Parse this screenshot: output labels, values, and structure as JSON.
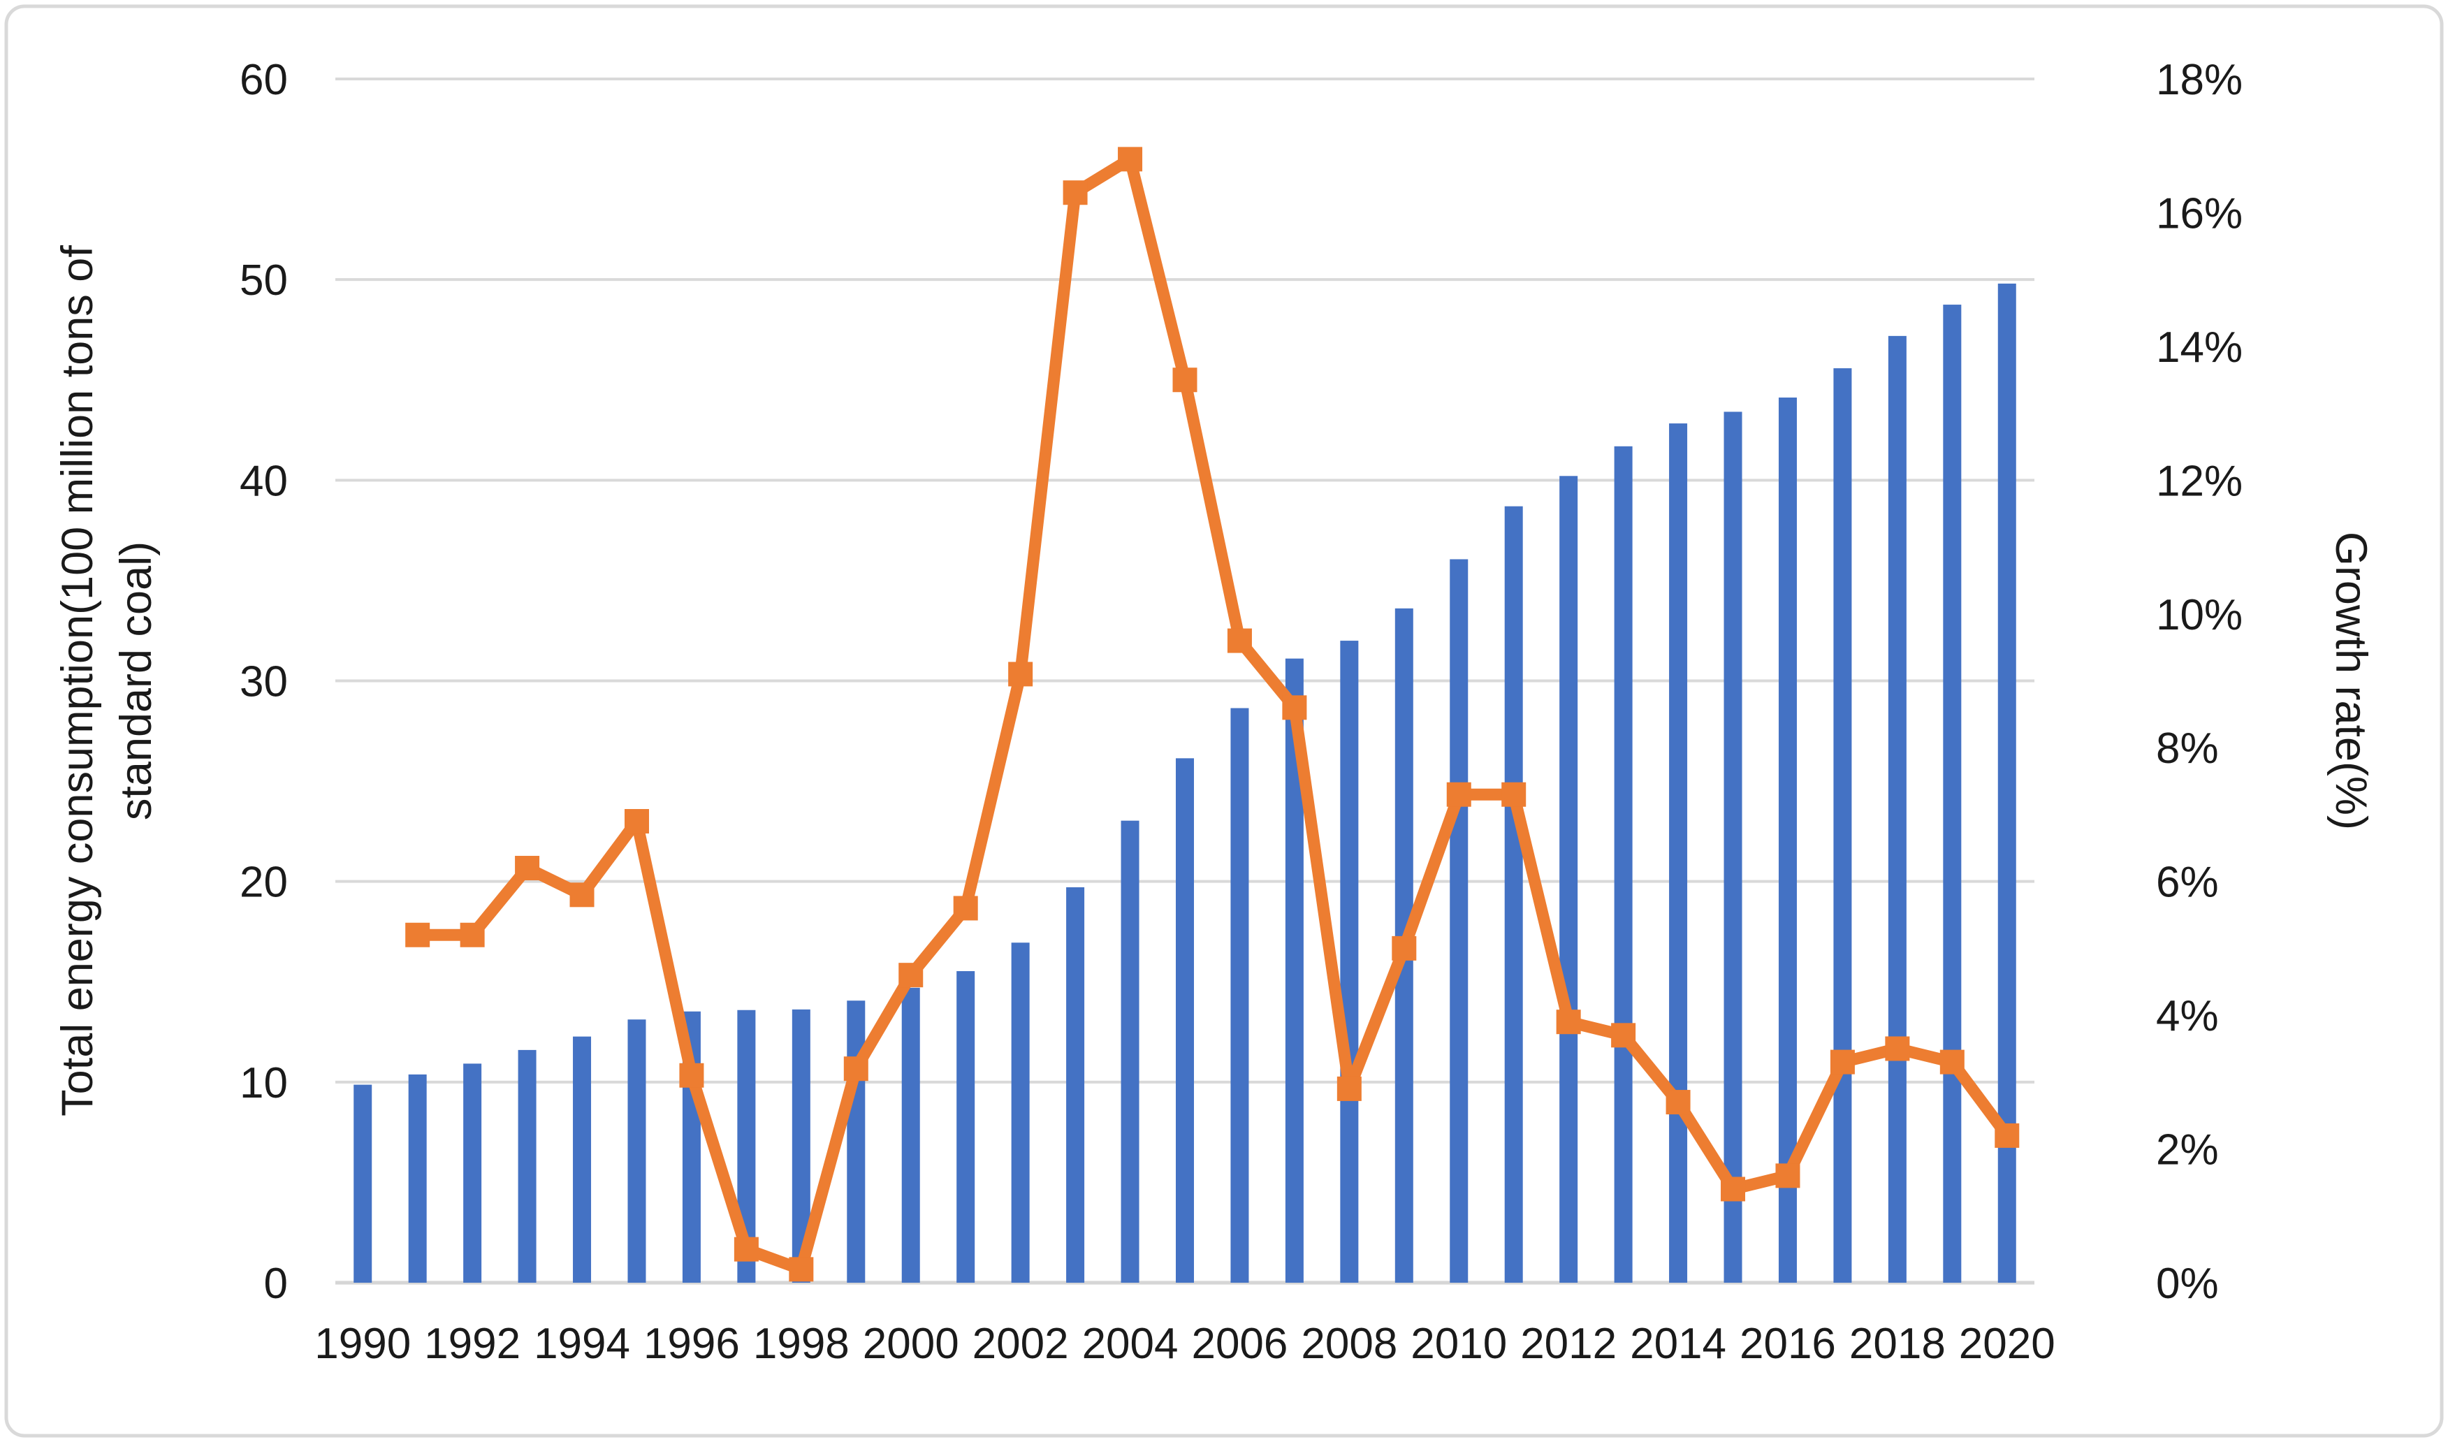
{
  "chart_data": {
    "type": "combo-bar-line",
    "title": "",
    "categories": [
      1990,
      1991,
      1992,
      1993,
      1994,
      1995,
      1996,
      1997,
      1998,
      1999,
      2000,
      2001,
      2002,
      2003,
      2004,
      2005,
      2006,
      2007,
      2008,
      2009,
      2010,
      2011,
      2012,
      2013,
      2014,
      2015,
      2016,
      2017,
      2018,
      2019,
      2020
    ],
    "series": [
      {
        "name": "Total energy consumption",
        "type": "bar",
        "axis": "left",
        "color": "#4472C4",
        "values": [
          9.87,
          10.38,
          10.92,
          11.6,
          12.27,
          13.12,
          13.52,
          13.59,
          13.62,
          14.06,
          14.7,
          15.53,
          16.95,
          19.71,
          23.03,
          26.14,
          28.64,
          31.11,
          32.0,
          33.61,
          36.06,
          38.7,
          40.21,
          41.69,
          42.83,
          43.41,
          44.12,
          45.58,
          47.19,
          48.75,
          49.8
        ]
      },
      {
        "name": "Growth rate",
        "type": "line",
        "axis": "right",
        "color": "#ED7D31",
        "marker": "square",
        "values": [
          null,
          5.2,
          5.2,
          6.2,
          5.8,
          6.9,
          3.1,
          0.5,
          0.2,
          3.2,
          4.6,
          5.6,
          9.1,
          16.3,
          16.8,
          13.5,
          9.6,
          8.6,
          2.9,
          5.0,
          7.3,
          7.3,
          3.9,
          3.7,
          2.7,
          1.4,
          1.6,
          3.3,
          3.5,
          3.3,
          2.2
        ]
      }
    ],
    "left_axis": {
      "title_lines": [
        "Total energy consumption(100 million tons of",
        "standard coal)"
      ],
      "min": 0,
      "max": 60,
      "step": 10,
      "tick_labels": [
        "0",
        "10",
        "20",
        "30",
        "40",
        "50",
        "60"
      ]
    },
    "right_axis": {
      "title": "Growth rate(%)",
      "min": 0,
      "max": 18,
      "step": 2,
      "tick_labels": [
        "0%",
        "2%",
        "4%",
        "6%",
        "8%",
        "10%",
        "12%",
        "14%",
        "16%",
        "18%"
      ]
    },
    "x_axis": {
      "tick_labels": [
        "1990",
        "1992",
        "1994",
        "1996",
        "1998",
        "2000",
        "2002",
        "2004",
        "2006",
        "2008",
        "2010",
        "2012",
        "2014",
        "2016",
        "2018",
        "2020"
      ],
      "label_every": 2
    },
    "gridlines": {
      "orientation": "horizontal",
      "at_left_axis_values": [
        0,
        10,
        20,
        30,
        40,
        50,
        60
      ]
    },
    "legend": "none"
  },
  "style": {
    "bar_color": "#4472C4",
    "line_color": "#ED7D31",
    "grid_color": "#D9D9D9",
    "axis_line_color": "#D6D6D6",
    "text_color": "#1A1A1A",
    "border_color": "#D9D9D9",
    "background": "#FFFFFF"
  }
}
